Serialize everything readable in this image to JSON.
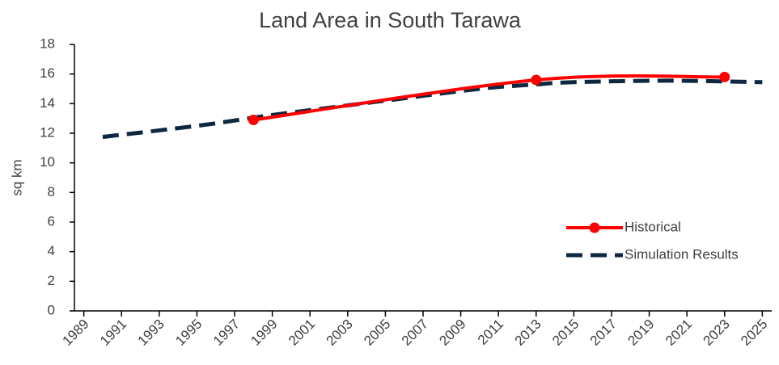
{
  "chart_data": {
    "type": "line",
    "title": "Land Area in South Tarawa",
    "y_label": "sq km",
    "xlim": [
      1988.5,
      2025.5
    ],
    "xticks": [
      1989,
      1991,
      1993,
      1995,
      1997,
      1999,
      2001,
      2003,
      2005,
      2007,
      2009,
      2011,
      2013,
      2015,
      2017,
      2019,
      2021,
      2023,
      2025
    ],
    "ylim": [
      0,
      18
    ],
    "yticks": [
      0,
      2,
      4,
      6,
      8,
      10,
      12,
      14,
      16,
      18
    ],
    "legend": "lower right",
    "series": [
      {
        "name": "Historical",
        "color": "#ff0000",
        "style": "solid",
        "markers": true,
        "smooth": true,
        "x": [
          1998,
          2013,
          2023
        ],
        "values": [
          12.9,
          15.6,
          15.8
        ]
      },
      {
        "name": "Simulation Results",
        "color": "#0e2841",
        "style": "dashed",
        "markers": false,
        "smooth": true,
        "x": [
          1990,
          1995,
          1998,
          2000,
          2005,
          2010,
          2013,
          2015,
          2020,
          2025
        ],
        "values": [
          11.75,
          12.5,
          13.05,
          13.4,
          14.2,
          15.0,
          15.3,
          15.45,
          15.55,
          15.45
        ]
      }
    ]
  }
}
